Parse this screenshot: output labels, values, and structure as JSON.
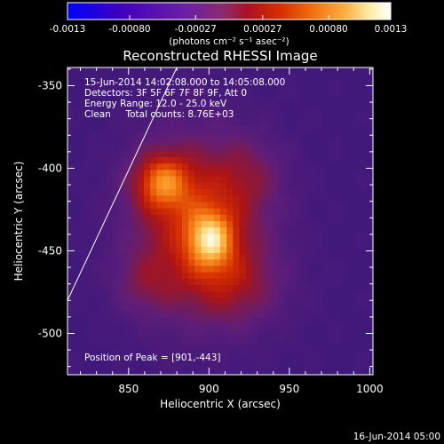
{
  "colorbar": {
    "tick_labels": [
      "-0.0013",
      "-0.00080",
      "-0.00027",
      "0.00027",
      "0.00080",
      "0.0013"
    ],
    "tick_values": [
      -0.0013,
      -0.0008,
      -0.00027,
      0.00027,
      0.0008,
      0.0013
    ],
    "range": [
      -0.0013,
      0.0013
    ],
    "units_label": "(photons cm⁻² s⁻¹ asec⁻²)",
    "colormap": [
      "#0000ff",
      "#3f00bf",
      "#6a1fa8",
      "#8a2a6e",
      "#b01020",
      "#d83000",
      "#f27010",
      "#ffb040",
      "#fff0b0",
      "#ffffff"
    ]
  },
  "chart_data": {
    "type": "heatmap",
    "title": "Reconstructed RHESSI Image",
    "xlabel": "Heliocentric X (arcsec)",
    "ylabel": "Heliocentric Y (arcsec)",
    "xlim": [
      812,
      1002
    ],
    "ylim": [
      -525,
      -339
    ],
    "x_ticks": [
      850,
      900,
      950,
      1000
    ],
    "y_ticks": [
      -350,
      -400,
      -450,
      -500
    ],
    "x_tick_labels": [
      "850",
      "900",
      "950",
      "1000"
    ],
    "y_tick_labels": [
      "-350",
      "-400",
      "-450",
      "-500"
    ],
    "annotations": [
      "15-Jun-2014 14:02:08.000 to 14:05:08.000",
      "Detectors: 3F 5F 6F 7F 8F 9F, Att 0",
      "Energy Range: 12.0 - 25.0 keV",
      "Clean     Total counts: 8.76E+03"
    ],
    "peak_label": "Position of Peak = [901,-443]",
    "peak": [
      901,
      -443
    ],
    "sources": [
      {
        "x": 901,
        "y": -443,
        "intensity": 1.0
      },
      {
        "x": 870,
        "y": -408,
        "intensity": 0.9
      },
      {
        "x": 888,
        "y": -425,
        "intensity": 0.55
      },
      {
        "x": 915,
        "y": -470,
        "intensity": 0.5
      },
      {
        "x": 925,
        "y": -405,
        "intensity": 0.35
      },
      {
        "x": 860,
        "y": -470,
        "intensity": 0.35
      }
    ],
    "limb_line": [
      [
        812,
        -480
      ],
      [
        880,
        -339
      ]
    ]
  },
  "footer": {
    "date": "16-Jun-2014 05:00"
  }
}
